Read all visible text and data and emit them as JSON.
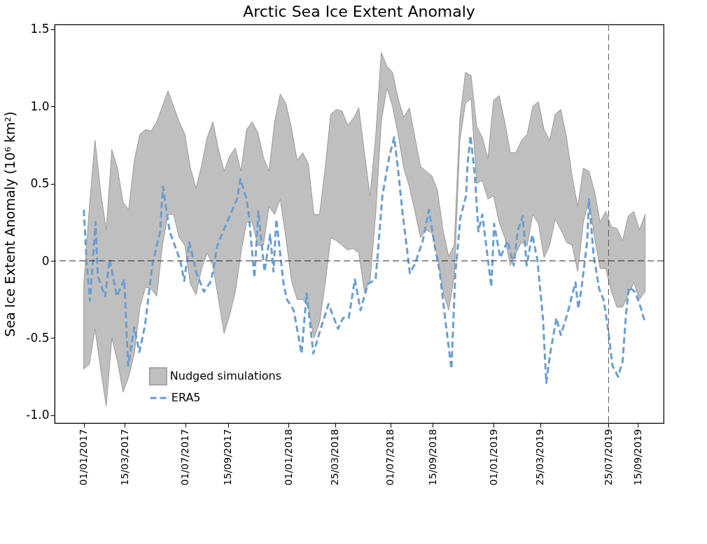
{
  "chart_data": {
    "type": "line",
    "title": "Arctic Sea Ice Extent Anomaly",
    "ylabel": "Sea Ice Extent Anomaly (10⁶ km²)",
    "xlim": [
      "2016-11-10",
      "2019-10-31"
    ],
    "xticks": [
      {
        "value": "2017-01-01",
        "label": "01/01/2017"
      },
      {
        "value": "2017-03-15",
        "label": "15/03/2017"
      },
      {
        "value": "2017-07-01",
        "label": "01/07/2017"
      },
      {
        "value": "2017-09-15",
        "label": "15/09/2017"
      },
      {
        "value": "2018-01-01",
        "label": "01/01/2018"
      },
      {
        "value": "2018-03-25",
        "label": "25/03/2018"
      },
      {
        "value": "2018-07-01",
        "label": "01/07/2018"
      },
      {
        "value": "2018-09-15",
        "label": "15/09/2018"
      },
      {
        "value": "2019-01-01",
        "label": "01/01/2019"
      },
      {
        "value": "2019-03-25",
        "label": "25/03/2019"
      },
      {
        "value": "2019-07-25",
        "label": "25/07/2019"
      },
      {
        "value": "2019-09-15",
        "label": "15/09/2019"
      }
    ],
    "ylim": [
      -1.05,
      1.53
    ],
    "yticks": [
      {
        "value": -1,
        "label": "-1.0"
      },
      {
        "value": -0.5,
        "label": "-0.5"
      },
      {
        "value": 0,
        "label": "0"
      },
      {
        "value": 0.5,
        "label": "0.5"
      },
      {
        "value": 1,
        "label": "1.0"
      },
      {
        "value": 1.5,
        "label": "1.5"
      }
    ],
    "grid": false,
    "legend": "bottom left",
    "series": [
      {
        "name": "Nudged simulations",
        "type": "area",
        "color": "#bfbfbf",
        "x": [
          "2017-01-01",
          "2017-01-11",
          "2017-01-21",
          "2017-01-31",
          "2017-02-10",
          "2017-02-20",
          "2017-03-02",
          "2017-03-12",
          "2017-03-22",
          "2017-04-01",
          "2017-04-11",
          "2017-04-21",
          "2017-05-01",
          "2017-05-11",
          "2017-05-21",
          "2017-05-31",
          "2017-06-10",
          "2017-06-20",
          "2017-06-30",
          "2017-07-10",
          "2017-07-20",
          "2017-07-30",
          "2017-08-09",
          "2017-08-19",
          "2017-08-29",
          "2017-09-08",
          "2017-09-18",
          "2017-09-28",
          "2017-10-08",
          "2017-10-18",
          "2017-10-28",
          "2017-11-07",
          "2017-11-17",
          "2017-11-27",
          "2017-12-07",
          "2017-12-17",
          "2017-12-27",
          "2018-01-06",
          "2018-01-16",
          "2018-01-26",
          "2018-02-05",
          "2018-02-15",
          "2018-02-25",
          "2018-03-07",
          "2018-03-17",
          "2018-03-27",
          "2018-04-06",
          "2018-04-16",
          "2018-04-26",
          "2018-05-06",
          "2018-05-16",
          "2018-05-26",
          "2018-06-05",
          "2018-06-15",
          "2018-06-25",
          "2018-07-05",
          "2018-07-15",
          "2018-07-25",
          "2018-08-04",
          "2018-08-14",
          "2018-08-24",
          "2018-09-03",
          "2018-09-13",
          "2018-09-23",
          "2018-10-03",
          "2018-10-13",
          "2018-10-23",
          "2018-11-02",
          "2018-11-12",
          "2018-11-22",
          "2018-12-02",
          "2018-12-12",
          "2018-12-22",
          "2019-01-01",
          "2019-01-11",
          "2019-01-21",
          "2019-01-31",
          "2019-02-10",
          "2019-02-20",
          "2019-03-02",
          "2019-03-12",
          "2019-03-22",
          "2019-04-01",
          "2019-04-11",
          "2019-04-21",
          "2019-05-01",
          "2019-05-11",
          "2019-05-21",
          "2019-05-31",
          "2019-06-10",
          "2019-06-20",
          "2019-06-30",
          "2019-07-10",
          "2019-07-20",
          "2019-07-30",
          "2019-08-09",
          "2019-08-19",
          "2019-08-29",
          "2019-09-08",
          "2019-09-18",
          "2019-09-28"
        ],
        "values": [
          null,
          null,
          null,
          null,
          null,
          null,
          null,
          null,
          null,
          null,
          null,
          null,
          null,
          null,
          null,
          null,
          null,
          null,
          null,
          null,
          null,
          null,
          null,
          null,
          null,
          null,
          null,
          null,
          null,
          null,
          null,
          null,
          null,
          null,
          null,
          null,
          null,
          null,
          null,
          null,
          null,
          null,
          null,
          null,
          null,
          null,
          null,
          null,
          null,
          null,
          null,
          null,
          null,
          null,
          null,
          null,
          null,
          null,
          null,
          null,
          null,
          null,
          null,
          null,
          null,
          null,
          null,
          null,
          null,
          null,
          null,
          null,
          null,
          null,
          null,
          null,
          null,
          null,
          null,
          null,
          null,
          null,
          null,
          null,
          null,
          null,
          null,
          null,
          null,
          null,
          null,
          null,
          null,
          null,
          null,
          null,
          null,
          null,
          null,
          null,
          null
        ],
        "upper": [
          -0.15,
          0.35,
          0.78,
          0.45,
          0.2,
          0.72,
          0.6,
          0.38,
          0.33,
          0.65,
          0.82,
          0.85,
          0.84,
          0.9,
          1.0,
          1.1,
          1.0,
          0.9,
          0.82,
          0.6,
          0.47,
          0.62,
          0.8,
          0.9,
          0.72,
          0.58,
          0.68,
          0.73,
          0.58,
          0.85,
          0.9,
          0.83,
          0.67,
          0.58,
          0.9,
          1.08,
          1.02,
          0.86,
          0.65,
          0.7,
          0.63,
          0.3,
          0.3,
          0.6,
          0.95,
          0.98,
          0.97,
          0.88,
          0.92,
          0.99,
          0.7,
          0.42,
          0.8,
          1.35,
          1.26,
          1.22,
          1.05,
          0.93,
          0.99,
          0.8,
          0.61,
          0.58,
          0.55,
          0.46,
          0.2,
          0.03,
          0.1,
          0.92,
          1.22,
          1.2,
          0.87,
          0.8,
          0.66,
          1.04,
          1.07,
          0.9,
          0.7,
          0.7,
          0.78,
          0.82,
          1.0,
          1.03,
          0.85,
          0.78,
          0.95,
          0.98,
          0.8,
          0.55,
          0.35,
          0.6,
          0.58,
          0.45,
          0.25,
          0.32,
          0.22,
          0.21,
          0.13,
          0.29,
          0.32,
          0.2,
          0.3
        ],
        "lower": [
          -0.7,
          -0.67,
          -0.44,
          -0.7,
          -0.94,
          -0.5,
          -0.65,
          -0.85,
          -0.75,
          -0.6,
          -0.3,
          -0.17,
          -0.18,
          -0.23,
          0.1,
          0.3,
          0.3,
          0.15,
          0.1,
          -0.15,
          -0.22,
          -0.05,
          0.05,
          -0.03,
          -0.25,
          -0.47,
          -0.35,
          -0.2,
          0.05,
          0.25,
          0.25,
          0.1,
          0.1,
          0.35,
          0.3,
          0.4,
          0.15,
          -0.13,
          -0.25,
          -0.25,
          -0.3,
          -0.5,
          -0.4,
          -0.15,
          0.15,
          0.13,
          0.1,
          0.07,
          0.08,
          0.05,
          -0.2,
          -0.13,
          0.3,
          0.9,
          1.12,
          1.0,
          0.82,
          0.6,
          0.48,
          0.32,
          0.15,
          0.2,
          0.18,
          0.03,
          -0.2,
          -0.32,
          -0.1,
          0.78,
          1.02,
          1.05,
          0.5,
          0.52,
          0.4,
          0.42,
          0.25,
          0.15,
          -0.03,
          0.05,
          0.12,
          0.1,
          0.3,
          0.24,
          0.02,
          0.1,
          0.27,
          0.2,
          0.12,
          0.1,
          -0.07,
          0.25,
          0.4,
          0.15,
          -0.05,
          -0.05,
          -0.2,
          -0.3,
          -0.3,
          -0.22,
          -0.14,
          -0.25,
          -0.2
        ]
      },
      {
        "name": "ERA5",
        "type": "line",
        "color": "#6a9ecf",
        "line_style": "dashed",
        "x": [
          "2017-01-01",
          "2017-01-06",
          "2017-01-12",
          "2017-01-22",
          "2017-01-26",
          "2017-02-08",
          "2017-02-16",
          "2017-03-01",
          "2017-03-14",
          "2017-03-21",
          "2017-04-01",
          "2017-04-10",
          "2017-04-20",
          "2017-05-03",
          "2017-05-17",
          "2017-05-22",
          "2017-06-03",
          "2017-06-22",
          "2017-06-29",
          "2017-07-08",
          "2017-07-21",
          "2017-08-03",
          "2017-08-16",
          "2017-08-27",
          "2017-09-12",
          "2017-10-01",
          "2017-10-07",
          "2017-10-18",
          "2017-10-22",
          "2017-11-01",
          "2017-11-08",
          "2017-11-19",
          "2017-11-29",
          "2017-12-05",
          "2017-12-10",
          "2017-12-23",
          "2017-12-29",
          "2018-01-10",
          "2018-01-24",
          "2018-02-02",
          "2018-02-14",
          "2018-02-27",
          "2018-03-13",
          "2018-03-30",
          "2018-04-08",
          "2018-04-18",
          "2018-04-29",
          "2018-05-09",
          "2018-05-22",
          "2018-06-05",
          "2018-06-17",
          "2018-06-29",
          "2018-07-08",
          "2018-07-15",
          "2018-07-22",
          "2018-07-27",
          "2018-08-05",
          "2018-08-14",
          "2018-08-28",
          "2018-09-08",
          "2018-09-18",
          "2018-09-27",
          "2018-10-07",
          "2018-10-18",
          "2018-10-25",
          "2018-11-03",
          "2018-11-13",
          "2018-11-16",
          "2018-11-21",
          "2018-11-29",
          "2018-12-05",
          "2018-12-12",
          "2018-12-20",
          "2018-12-28",
          "2019-01-02",
          "2019-01-13",
          "2019-01-26",
          "2019-02-06",
          "2019-02-13",
          "2019-02-22",
          "2019-03-01",
          "2019-03-11",
          "2019-03-20",
          "2019-03-30",
          "2019-04-05",
          "2019-04-12",
          "2019-04-23",
          "2019-05-01",
          "2019-05-12",
          "2019-05-27",
          "2019-06-01",
          "2019-06-07",
          "2019-06-17",
          "2019-06-20",
          "2019-06-28",
          "2019-07-08",
          "2019-07-16",
          "2019-07-24",
          "2019-08-01",
          "2019-08-11",
          "2019-08-19",
          "2019-08-25",
          "2019-08-30",
          "2019-09-10",
          "2019-09-20",
          "2019-09-28"
        ],
        "values": [
          0.33,
          0.0,
          -0.26,
          0.25,
          -0.1,
          -0.23,
          0.01,
          -0.23,
          -0.12,
          -0.68,
          -0.43,
          -0.59,
          -0.42,
          -0.03,
          0.19,
          0.48,
          0.19,
          0.0,
          -0.13,
          0.12,
          -0.08,
          -0.2,
          -0.13,
          0.1,
          0.24,
          0.4,
          0.53,
          0.4,
          0.3,
          -0.11,
          0.32,
          -0.07,
          0.17,
          -0.07,
          0.27,
          -0.15,
          -0.25,
          -0.32,
          -0.6,
          -0.21,
          -0.6,
          -0.44,
          -0.28,
          -0.44,
          -0.37,
          -0.37,
          -0.12,
          -0.32,
          -0.15,
          -0.12,
          0.42,
          0.67,
          0.8,
          0.59,
          0.34,
          0.19,
          -0.08,
          -0.02,
          0.13,
          0.33,
          0.1,
          -0.07,
          -0.38,
          -0.7,
          -0.08,
          0.28,
          0.42,
          0.64,
          0.81,
          0.54,
          0.19,
          0.3,
          0.07,
          -0.17,
          0.24,
          0.02,
          0.13,
          -0.03,
          0.19,
          0.29,
          -0.03,
          0.17,
          0.01,
          -0.37,
          -0.79,
          -0.6,
          -0.37,
          -0.48,
          -0.35,
          -0.14,
          -0.31,
          -0.17,
          0.13,
          0.4,
          0.05,
          -0.18,
          -0.25,
          -0.44,
          -0.68,
          -0.75,
          -0.65,
          -0.35,
          -0.17,
          -0.2,
          -0.3,
          -0.4
        ]
      }
    ],
    "ref_lines": [
      {
        "axis": "y",
        "value": 0,
        "color": "#222222",
        "line_style": "dashed"
      },
      {
        "axis": "x",
        "value": "2019-07-25",
        "color": "#555555",
        "line_style": "dashed"
      }
    ]
  }
}
